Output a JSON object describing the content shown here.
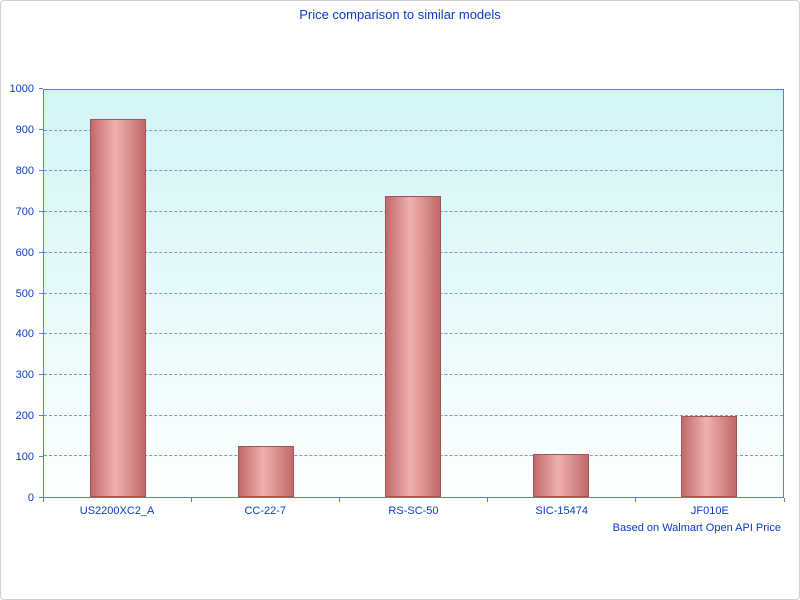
{
  "chart": {
    "colors": {
      "text": "#0b3ac8",
      "grid": "#7e96bd",
      "axis": "#5b80c2",
      "bar_dark": "#c2696a",
      "bar_light": "#efb0b0",
      "bar_border": "#9e5253",
      "plot_top": "#d3f4f6",
      "plot_mid": "#e9fafb",
      "plot_bottom": "#fdffff"
    }
  },
  "chart_data": {
    "type": "bar",
    "title": "Price comparison to similar models",
    "categories": [
      "US2200XC2_A",
      "CC-22-7",
      "RS-SC-50",
      "SIC-15474",
      "JF010E"
    ],
    "values": [
      930,
      125,
      740,
      105,
      198
    ],
    "xlabel": "",
    "ylabel": "",
    "ylim": [
      0,
      1000
    ],
    "yticks": [
      0,
      100,
      200,
      300,
      400,
      500,
      600,
      700,
      800,
      900,
      1000
    ],
    "grid": "horizontal-dashed",
    "legend": "none",
    "footnote": "Based on Walmart Open API Price"
  }
}
